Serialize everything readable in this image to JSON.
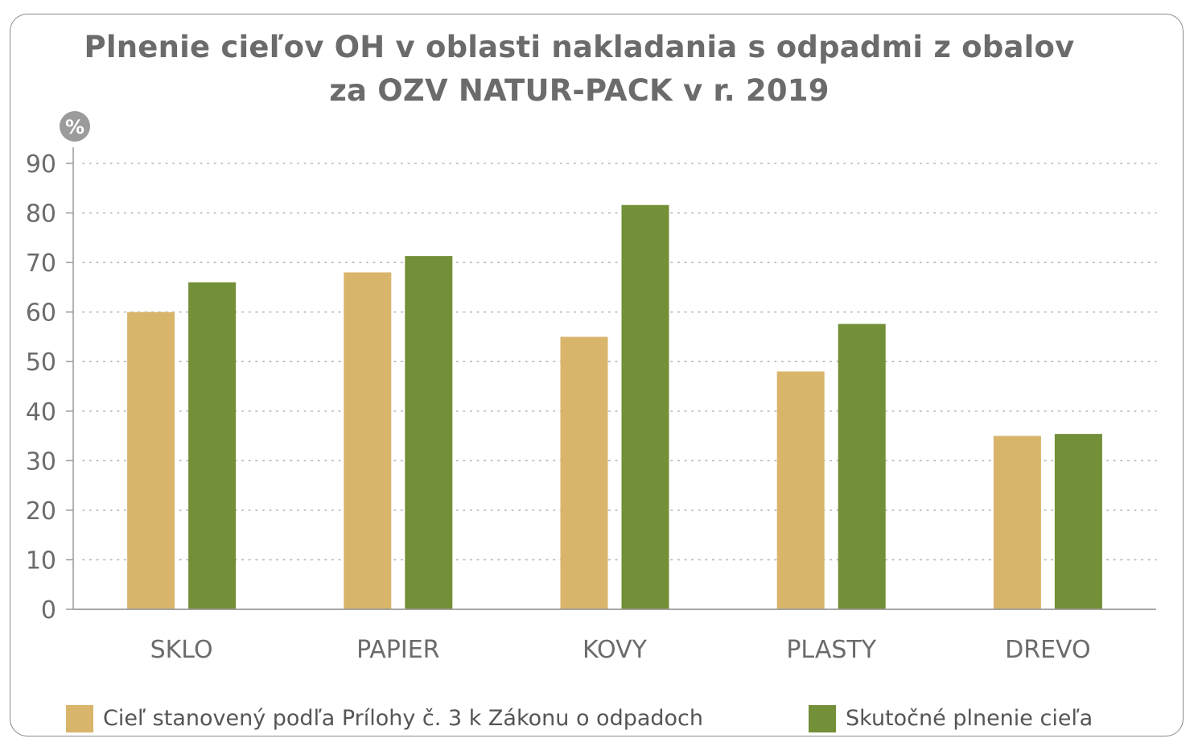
{
  "title": {
    "line1": "Plnenie cieľov OH v oblasti nakladania s odpadmi z obalov",
    "line2": "za OZV NATUR-PACK v r. 2019"
  },
  "colors": {
    "target": "#d9b56c",
    "actual": "#738f37",
    "text": "#6b6b6b",
    "badge": "#9b9b9b"
  },
  "chart_data": {
    "type": "bar",
    "ylabel": "%",
    "ylim": [
      0,
      90
    ],
    "yticks": [
      0,
      10,
      20,
      30,
      40,
      50,
      60,
      70,
      80,
      90
    ],
    "grid": "horizontal-dotted",
    "legend_position": "bottom",
    "categories": [
      "SKLO",
      "PAPIER",
      "KOVY",
      "PLASTY",
      "DREVO"
    ],
    "series": [
      {
        "name": "Cieľ stanovený podľa Prílohy č. 3 k Zákonu o odpadoch",
        "values": [
          60,
          68,
          55,
          48,
          35
        ]
      },
      {
        "name": "Skutočné plnenie cieľa",
        "values": [
          66,
          71.3,
          81.6,
          57.6,
          35.4
        ]
      }
    ]
  }
}
